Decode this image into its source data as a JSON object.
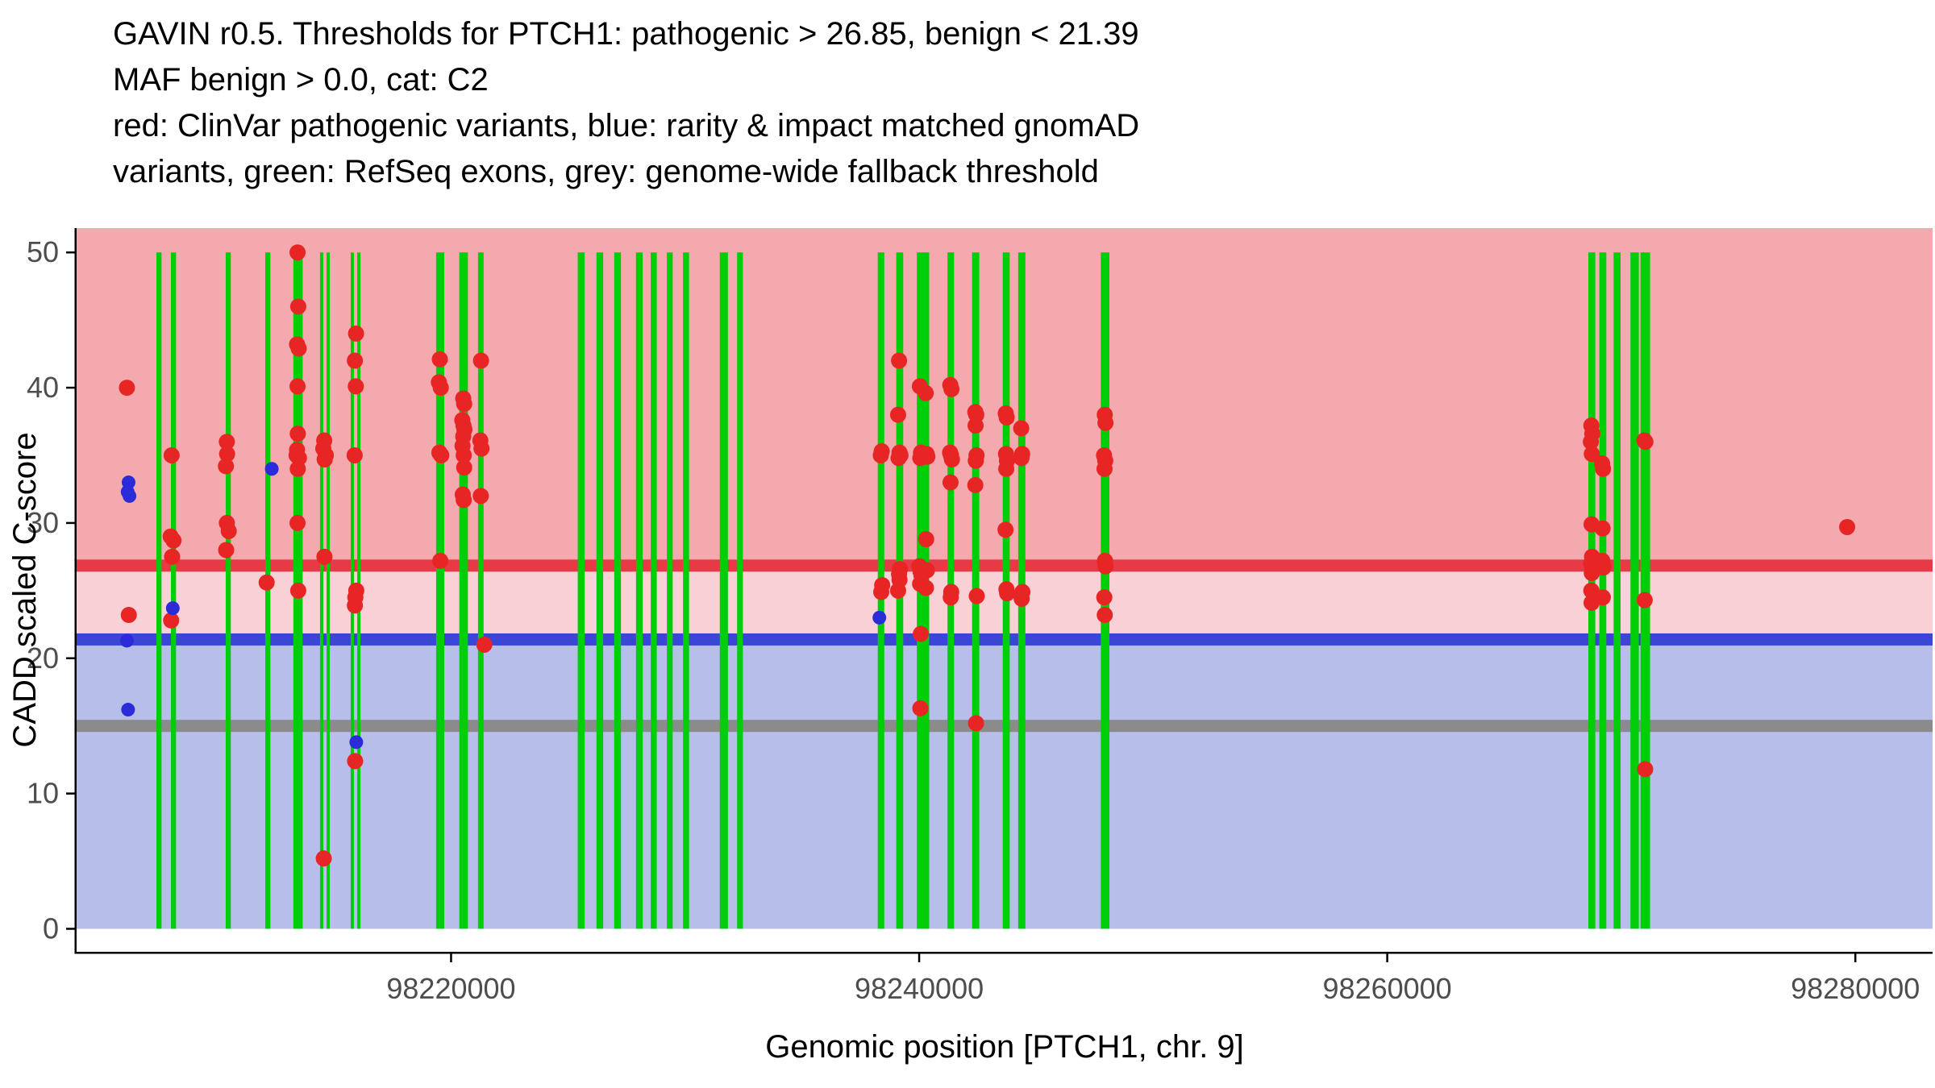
{
  "title": {
    "lines": [
      "GAVIN r0.5. Thresholds for PTCH1: pathogenic > 26.85, benign < 21.39",
      "MAF benign > 0.0, cat: C2",
      "red: ClinVar pathogenic variants, blue: rarity & impact matched gnomAD",
      "variants, green: RefSeq exons, grey: genome-wide fallback threshold"
    ]
  },
  "chart_data": {
    "type": "scatter",
    "title": "GAVIN r0.5. Thresholds for PTCH1: pathogenic > 26.85, benign < 21.39 | MAF benign > 0.0, cat: C2",
    "xlabel": "Genomic position [PTCH1, chr. 9]",
    "ylabel": "CADD scaled C-score",
    "xlim": [
      98204000,
      98283300
    ],
    "ylim": [
      -1.7,
      51.8
    ],
    "x_ticks": [
      98220000,
      98240000,
      98260000,
      98280000
    ],
    "y_ticks": [
      0,
      10,
      20,
      30,
      40,
      50
    ],
    "grid": false,
    "legend_position": "none",
    "thresholds": [
      {
        "name": "pathogenic",
        "value": 26.85,
        "color": "#E73946"
      },
      {
        "name": "benign",
        "value": 21.39,
        "color": "#3946D6"
      },
      {
        "name": "genome-wide-fallback",
        "value": 15.0,
        "color": "#8B8B8B"
      }
    ],
    "regions": [
      {
        "name": "pathogenic-zone",
        "from": 26.85,
        "to": 51.8,
        "color": "#F4A9AE"
      },
      {
        "name": "intermediate-zone",
        "from": 21.39,
        "to": 26.85,
        "color": "#F9D0D6"
      },
      {
        "name": "benign-zone",
        "from": 0,
        "to": 21.39,
        "color": "#B7BEE9"
      }
    ],
    "exon_color": "#00CE08",
    "exons": [
      [
        98207480,
        98207560
      ],
      [
        98208100,
        98208180
      ],
      [
        98210440,
        98210520
      ],
      [
        98212130,
        98212210
      ],
      [
        98213330,
        98213590
      ],
      [
        98214470,
        98214750
      ],
      [
        98215780,
        98216060
      ],
      [
        98219430,
        98219640
      ],
      [
        98220420,
        98220650
      ],
      [
        98221220,
        98221320
      ],
      [
        98225480,
        98225640
      ],
      [
        98226280,
        98226430
      ],
      [
        98227040,
        98227190
      ],
      [
        98227970,
        98228120
      ],
      [
        98228600,
        98228720
      ],
      [
        98229290,
        98229400
      ],
      [
        98229980,
        98230100
      ],
      [
        98231550,
        98231760
      ],
      [
        98232290,
        98232400
      ],
      [
        98238300,
        98238440
      ],
      [
        98239090,
        98239250
      ],
      [
        98239970,
        98240130
      ],
      [
        98240230,
        98240360
      ],
      [
        98241280,
        98241420
      ],
      [
        98242330,
        98242500
      ],
      [
        98243640,
        98243800
      ],
      [
        98244300,
        98244470
      ],
      [
        98247830,
        98248060
      ],
      [
        98268660,
        98268820
      ],
      [
        98269130,
        98269290
      ],
      [
        98269740,
        98269900
      ],
      [
        98270460,
        98270680
      ],
      [
        98270890,
        98271160
      ]
    ],
    "series": [
      {
        "name": "ClinVar pathogenic variants",
        "color": "#E82525",
        "radius": 10,
        "points": [
          [
            98206150,
            40.0
          ],
          [
            98206230,
            23.2
          ],
          [
            98208060,
            35.0
          ],
          [
            98208020,
            29.0
          ],
          [
            98208140,
            28.7
          ],
          [
            98208080,
            27.5
          ],
          [
            98208040,
            22.8
          ],
          [
            98210420,
            36.0
          ],
          [
            98210430,
            35.1
          ],
          [
            98210380,
            34.2
          ],
          [
            98210420,
            30.0
          ],
          [
            98210500,
            29.4
          ],
          [
            98210390,
            28.0
          ],
          [
            98212120,
            25.6
          ],
          [
            98213440,
            50.0
          ],
          [
            98213470,
            46.0
          ],
          [
            98213420,
            43.2
          ],
          [
            98213490,
            42.9
          ],
          [
            98213440,
            40.1
          ],
          [
            98213450,
            36.6
          ],
          [
            98213420,
            35.4
          ],
          [
            98213400,
            35.0
          ],
          [
            98213500,
            34.8
          ],
          [
            98213450,
            34.0
          ],
          [
            98213440,
            30.0
          ],
          [
            98213470,
            25.0
          ],
          [
            98214580,
            36.1
          ],
          [
            98214540,
            35.5
          ],
          [
            98214650,
            35.0
          ],
          [
            98214600,
            34.7
          ],
          [
            98214590,
            27.5
          ],
          [
            98214560,
            5.2
          ],
          [
            98215940,
            44.0
          ],
          [
            98215890,
            42.0
          ],
          [
            98215930,
            40.1
          ],
          [
            98215880,
            35.0
          ],
          [
            98215950,
            25.0
          ],
          [
            98215910,
            24.5
          ],
          [
            98215890,
            23.9
          ],
          [
            98215900,
            12.4
          ],
          [
            98219520,
            42.1
          ],
          [
            98219480,
            40.4
          ],
          [
            98219560,
            40.0
          ],
          [
            98219500,
            35.2
          ],
          [
            98219580,
            35.0
          ],
          [
            98219540,
            27.2
          ],
          [
            98220520,
            39.2
          ],
          [
            98220560,
            38.8
          ],
          [
            98220480,
            37.6
          ],
          [
            98220530,
            37.2
          ],
          [
            98220570,
            36.9
          ],
          [
            98220520,
            36.4
          ],
          [
            98220490,
            35.7
          ],
          [
            98220540,
            35.0
          ],
          [
            98220560,
            34.1
          ],
          [
            98220500,
            32.1
          ],
          [
            98220540,
            31.7
          ],
          [
            98221280,
            42.0
          ],
          [
            98221250,
            36.1
          ],
          [
            98221300,
            35.5
          ],
          [
            98221270,
            32.0
          ],
          [
            98221420,
            21.0
          ],
          [
            98238400,
            35.3
          ],
          [
            98238360,
            35.0
          ],
          [
            98238420,
            25.4
          ],
          [
            98238380,
            24.9
          ],
          [
            98239140,
            42.0
          ],
          [
            98239100,
            38.0
          ],
          [
            98239160,
            35.2
          ],
          [
            98239200,
            35.0
          ],
          [
            98239120,
            34.8
          ],
          [
            98239180,
            26.6
          ],
          [
            98239140,
            26.2
          ],
          [
            98239160,
            25.8
          ],
          [
            98239100,
            25.0
          ],
          [
            98240030,
            40.1
          ],
          [
            98240080,
            35.2
          ],
          [
            98240120,
            35.0
          ],
          [
            98240050,
            34.8
          ],
          [
            98240010,
            26.8
          ],
          [
            98240060,
            26.4
          ],
          [
            98240100,
            26.1
          ],
          [
            98240040,
            25.5
          ],
          [
            98240070,
            21.8
          ],
          [
            98240050,
            16.3
          ],
          [
            98240280,
            39.6
          ],
          [
            98240320,
            35.1
          ],
          [
            98240350,
            34.9
          ],
          [
            98240300,
            28.8
          ],
          [
            98240330,
            26.5
          ],
          [
            98240290,
            25.2
          ],
          [
            98241330,
            40.2
          ],
          [
            98241380,
            39.9
          ],
          [
            98241320,
            35.2
          ],
          [
            98241360,
            35.0
          ],
          [
            98241400,
            34.7
          ],
          [
            98241340,
            33.0
          ],
          [
            98241370,
            24.9
          ],
          [
            98241350,
            24.5
          ],
          [
            98242400,
            38.2
          ],
          [
            98242440,
            38.0
          ],
          [
            98242410,
            37.2
          ],
          [
            98242450,
            35.0
          ],
          [
            98242420,
            34.6
          ],
          [
            98242400,
            32.8
          ],
          [
            98242460,
            24.6
          ],
          [
            98242430,
            15.2
          ],
          [
            98243700,
            38.1
          ],
          [
            98243740,
            37.8
          ],
          [
            98243710,
            35.1
          ],
          [
            98243750,
            34.6
          ],
          [
            98243720,
            34.0
          ],
          [
            98243690,
            29.5
          ],
          [
            98243730,
            25.1
          ],
          [
            98243760,
            24.8
          ],
          [
            98244360,
            37.0
          ],
          [
            98244400,
            35.1
          ],
          [
            98244370,
            34.8
          ],
          [
            98244410,
            24.9
          ],
          [
            98244380,
            24.4
          ],
          [
            98247930,
            38.0
          ],
          [
            98247960,
            37.4
          ],
          [
            98247900,
            35.0
          ],
          [
            98247950,
            34.6
          ],
          [
            98247920,
            34.0
          ],
          [
            98247940,
            27.2
          ],
          [
            98247960,
            26.8
          ],
          [
            98247910,
            24.5
          ],
          [
            98247930,
            23.2
          ],
          [
            98268720,
            37.2
          ],
          [
            98268760,
            36.6
          ],
          [
            98268700,
            36.0
          ],
          [
            98268740,
            35.1
          ],
          [
            98269180,
            34.4
          ],
          [
            98269220,
            34.0
          ],
          [
            98268730,
            29.9
          ],
          [
            98269200,
            29.6
          ],
          [
            98268750,
            27.5
          ],
          [
            98269190,
            27.2
          ],
          [
            98268710,
            27.0
          ],
          [
            98269230,
            26.7
          ],
          [
            98268740,
            26.3
          ],
          [
            98268720,
            25.0
          ],
          [
            98269210,
            24.5
          ],
          [
            98268730,
            24.1
          ],
          [
            98270990,
            36.1
          ],
          [
            98271030,
            36.0
          ],
          [
            98271000,
            24.3
          ],
          [
            98271020,
            11.8
          ],
          [
            98279650,
            29.7
          ]
        ]
      },
      {
        "name": "rarity & impact matched gnomAD variants",
        "color": "#2B2BD9",
        "radius": 8.5,
        "points": [
          [
            98206220,
            33.0
          ],
          [
            98206180,
            32.3
          ],
          [
            98206260,
            32.0
          ],
          [
            98206150,
            21.3
          ],
          [
            98206200,
            16.2
          ],
          [
            98208110,
            23.7
          ],
          [
            98212340,
            34.0
          ],
          [
            98215950,
            13.8
          ],
          [
            98238300,
            23.0
          ]
        ]
      }
    ],
    "colors": {
      "background": "#FFFFFF",
      "axis": "#000000",
      "tick_label": "#4D4D4D",
      "axis_title": "#000000"
    }
  }
}
